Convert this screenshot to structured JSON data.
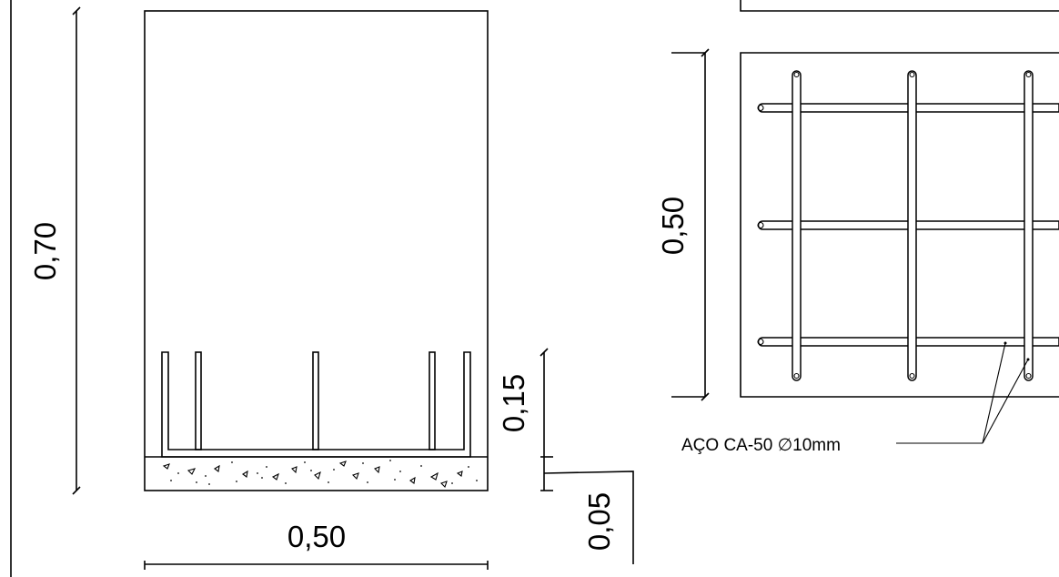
{
  "section": {
    "dim_height": "0,70",
    "dim_width": "0,50",
    "dim_bar_height": "0,15",
    "dim_base": "0,05"
  },
  "plan": {
    "dim_side": "0,50"
  },
  "annotation": {
    "steel": "AÇO CA-50 ∅10mm"
  }
}
